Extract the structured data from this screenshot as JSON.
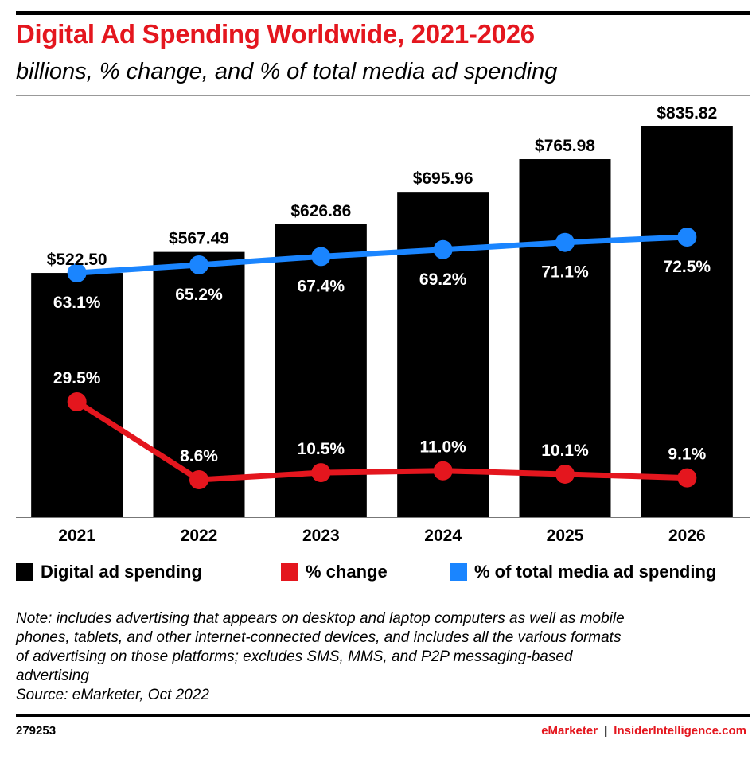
{
  "title": "Digital Ad Spending Worldwide, 2021-2026",
  "subtitle": "billions, % change, and % of total media ad spending",
  "chart_data": {
    "type": "bar",
    "categories": [
      "2021",
      "2022",
      "2023",
      "2024",
      "2025",
      "2026"
    ],
    "series": [
      {
        "name": "Digital ad spending",
        "type": "bar",
        "color": "#000000",
        "values": [
          522.5,
          567.49,
          626.86,
          695.96,
          765.98,
          835.82
        ],
        "labels": [
          "$522.50",
          "$567.49",
          "$626.86",
          "$695.96",
          "$765.98",
          "$835.82"
        ]
      },
      {
        "name": "% change",
        "type": "line",
        "color": "#e4161e",
        "values": [
          29.5,
          8.6,
          10.5,
          11.0,
          10.1,
          9.1
        ],
        "labels": [
          "29.5%",
          "8.6%",
          "10.5%",
          "11.0%",
          "10.1%",
          "9.1%"
        ]
      },
      {
        "name": "% of total media ad spending",
        "type": "line",
        "color": "#1a85ff",
        "values": [
          63.1,
          65.2,
          67.4,
          69.2,
          71.1,
          72.5
        ],
        "labels": [
          "63.1%",
          "65.2%",
          "67.4%",
          "69.2%",
          "71.1%",
          "72.5%"
        ]
      }
    ],
    "legend_position": "bottom",
    "grid": false
  },
  "note_lines": [
    "Note: includes advertising that appears on desktop and laptop computers as well as mobile",
    "phones, tablets, and other internet-connected devices, and includes all the various formats",
    "of advertising on those platforms; excludes SMS, MMS, and P2P messaging-based",
    "advertising",
    "Source: eMarketer, Oct 2022"
  ],
  "footer": {
    "id": "279253",
    "brand1": "eMarketer",
    "separator": "|",
    "brand2": "InsiderIntelligence.com"
  }
}
